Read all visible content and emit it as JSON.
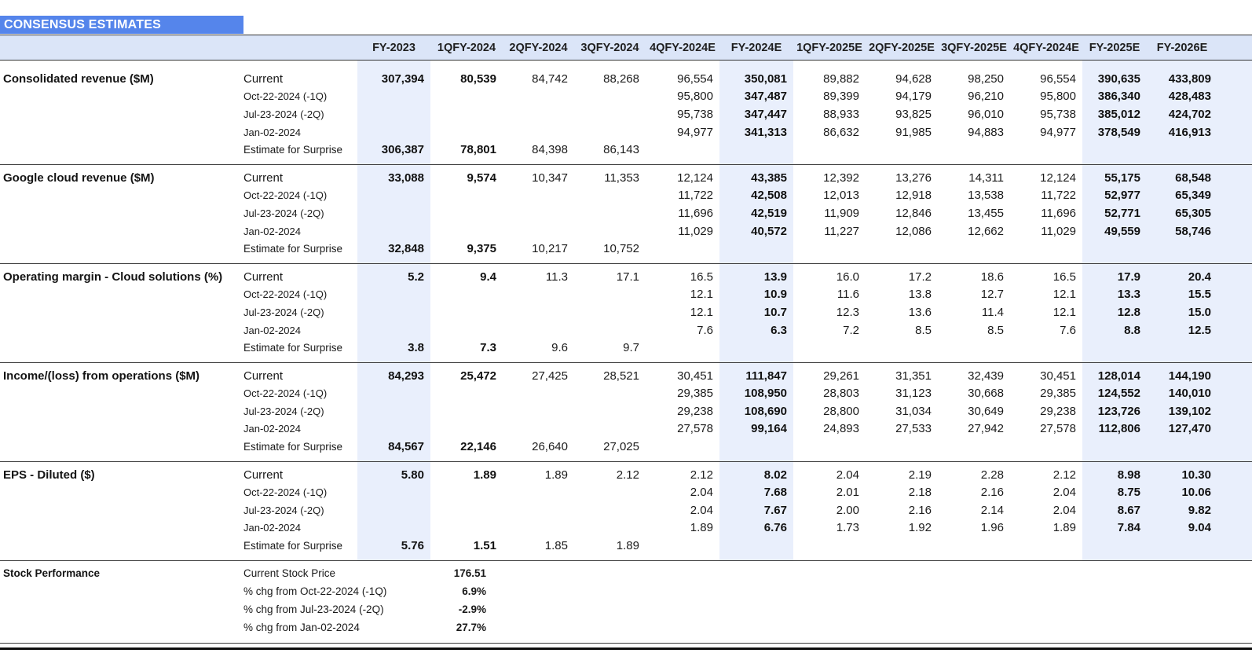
{
  "title": "CONSENSUS ESTIMATES",
  "colors": {
    "title_bg": "#5585EB",
    "header_bg": "#DBE5F8",
    "highlight_bg": "#E9EFFC",
    "title_text": "#FFFFFF",
    "border": "#3C3C3C"
  },
  "columns": [
    {
      "label": "FY-2023",
      "highlight": true,
      "bold": true
    },
    {
      "label": "1QFY-2024",
      "highlight": false,
      "bold": true
    },
    {
      "label": "2QFY-2024",
      "highlight": false,
      "bold": false
    },
    {
      "label": "3QFY-2024",
      "highlight": false,
      "bold": false
    },
    {
      "label": "4QFY-2024E",
      "highlight": false,
      "bold": false
    },
    {
      "label": "FY-2024E",
      "highlight": true,
      "bold": true
    },
    {
      "label": "1QFY-2025E",
      "highlight": false,
      "bold": false
    },
    {
      "label": "2QFY-2025E",
      "highlight": false,
      "bold": false
    },
    {
      "label": "3QFY-2025E",
      "highlight": false,
      "bold": false
    },
    {
      "label": "4QFY-2024E",
      "highlight": false,
      "bold": false
    },
    {
      "label": "FY-2025E",
      "highlight": true,
      "bold": true
    },
    {
      "label": "FY-2026E",
      "highlight": true,
      "bold": true
    }
  ],
  "sections": [
    {
      "metric": "Consolidated revenue ($M)",
      "rows": [
        {
          "label": "Current",
          "values": [
            "307,394",
            "80,539",
            "84,742",
            "88,268",
            "96,554",
            "350,081",
            "89,882",
            "94,628",
            "98,250",
            "96,554",
            "390,635",
            "433,809"
          ]
        },
        {
          "label": "Oct-22-2024 (-1Q)",
          "values": [
            "",
            "",
            "",
            "",
            "95,800",
            "347,487",
            "89,399",
            "94,179",
            "96,210",
            "95,800",
            "386,340",
            "428,483"
          ]
        },
        {
          "label": "Jul-23-2024 (-2Q)",
          "values": [
            "",
            "",
            "",
            "",
            "95,738",
            "347,447",
            "88,933",
            "93,825",
            "96,010",
            "95,738",
            "385,012",
            "424,702"
          ]
        },
        {
          "label": "Jan-02-2024",
          "values": [
            "",
            "",
            "",
            "",
            "94,977",
            "341,313",
            "86,632",
            "91,985",
            "94,883",
            "94,977",
            "378,549",
            "416,913"
          ]
        },
        {
          "label": "Estimate for Surprise",
          "values": [
            "306,387",
            "78,801",
            "84,398",
            "86,143",
            "",
            "",
            "",
            "",
            "",
            "",
            "",
            ""
          ]
        }
      ]
    },
    {
      "metric": "Google cloud revenue ($M)",
      "rows": [
        {
          "label": "Current",
          "values": [
            "33,088",
            "9,574",
            "10,347",
            "11,353",
            "12,124",
            "43,385",
            "12,392",
            "13,276",
            "14,311",
            "12,124",
            "55,175",
            "68,548"
          ]
        },
        {
          "label": "Oct-22-2024 (-1Q)",
          "values": [
            "",
            "",
            "",
            "",
            "11,722",
            "42,508",
            "12,013",
            "12,918",
            "13,538",
            "11,722",
            "52,977",
            "65,349"
          ]
        },
        {
          "label": "Jul-23-2024 (-2Q)",
          "values": [
            "",
            "",
            "",
            "",
            "11,696",
            "42,519",
            "11,909",
            "12,846",
            "13,455",
            "11,696",
            "52,771",
            "65,305"
          ]
        },
        {
          "label": "Jan-02-2024",
          "values": [
            "",
            "",
            "",
            "",
            "11,029",
            "40,572",
            "11,227",
            "12,086",
            "12,662",
            "11,029",
            "49,559",
            "58,746"
          ]
        },
        {
          "label": "Estimate for Surprise",
          "values": [
            "32,848",
            "9,375",
            "10,217",
            "10,752",
            "",
            "",
            "",
            "",
            "",
            "",
            "",
            ""
          ]
        }
      ]
    },
    {
      "metric": "Operating margin - Cloud solutions (%)",
      "rows": [
        {
          "label": "Current",
          "values": [
            "5.2",
            "9.4",
            "11.3",
            "17.1",
            "16.5",
            "13.9",
            "16.0",
            "17.2",
            "18.6",
            "16.5",
            "17.9",
            "20.4"
          ]
        },
        {
          "label": "Oct-22-2024 (-1Q)",
          "values": [
            "",
            "",
            "",
            "",
            "12.1",
            "10.9",
            "11.6",
            "13.8",
            "12.7",
            "12.1",
            "13.3",
            "15.5"
          ]
        },
        {
          "label": "Jul-23-2024 (-2Q)",
          "values": [
            "",
            "",
            "",
            "",
            "12.1",
            "10.7",
            "12.3",
            "13.6",
            "11.4",
            "12.1",
            "12.8",
            "15.0"
          ]
        },
        {
          "label": "Jan-02-2024",
          "values": [
            "",
            "",
            "",
            "",
            "7.6",
            "6.3",
            "7.2",
            "8.5",
            "8.5",
            "7.6",
            "8.8",
            "12.5"
          ]
        },
        {
          "label": "Estimate for Surprise",
          "values": [
            "3.8",
            "7.3",
            "9.6",
            "9.7",
            "",
            "",
            "",
            "",
            "",
            "",
            "",
            ""
          ]
        }
      ]
    },
    {
      "metric": "Income/(loss) from operations ($M)",
      "rows": [
        {
          "label": "Current",
          "values": [
            "84,293",
            "25,472",
            "27,425",
            "28,521",
            "30,451",
            "111,847",
            "29,261",
            "31,351",
            "32,439",
            "30,451",
            "128,014",
            "144,190"
          ]
        },
        {
          "label": "Oct-22-2024 (-1Q)",
          "values": [
            "",
            "",
            "",
            "",
            "29,385",
            "108,950",
            "28,803",
            "31,123",
            "30,668",
            "29,385",
            "124,552",
            "140,010"
          ]
        },
        {
          "label": "Jul-23-2024 (-2Q)",
          "values": [
            "",
            "",
            "",
            "",
            "29,238",
            "108,690",
            "28,800",
            "31,034",
            "30,649",
            "29,238",
            "123,726",
            "139,102"
          ]
        },
        {
          "label": "Jan-02-2024",
          "values": [
            "",
            "",
            "",
            "",
            "27,578",
            "99,164",
            "24,893",
            "27,533",
            "27,942",
            "27,578",
            "112,806",
            "127,470"
          ]
        },
        {
          "label": "Estimate for Surprise",
          "values": [
            "84,567",
            "22,146",
            "26,640",
            "27,025",
            "",
            "",
            "",
            "",
            "",
            "",
            "",
            ""
          ]
        }
      ]
    },
    {
      "metric": "EPS - Diluted ($)",
      "rows": [
        {
          "label": "Current",
          "values": [
            "5.80",
            "1.89",
            "1.89",
            "2.12",
            "2.12",
            "8.02",
            "2.04",
            "2.19",
            "2.28",
            "2.12",
            "8.98",
            "10.30"
          ]
        },
        {
          "label": "Oct-22-2024 (-1Q)",
          "values": [
            "",
            "",
            "",
            "",
            "2.04",
            "7.68",
            "2.01",
            "2.18",
            "2.16",
            "2.04",
            "8.75",
            "10.06"
          ]
        },
        {
          "label": "Jul-23-2024 (-2Q)",
          "values": [
            "",
            "",
            "",
            "",
            "2.04",
            "7.67",
            "2.00",
            "2.16",
            "2.14",
            "2.04",
            "8.67",
            "9.82"
          ]
        },
        {
          "label": "Jan-02-2024",
          "values": [
            "",
            "",
            "",
            "",
            "1.89",
            "6.76",
            "1.73",
            "1.92",
            "1.96",
            "1.89",
            "7.84",
            "9.04"
          ]
        },
        {
          "label": "Estimate for Surprise",
          "values": [
            "5.76",
            "1.51",
            "1.85",
            "1.89",
            "",
            "",
            "",
            "",
            "",
            "",
            "",
            ""
          ]
        }
      ]
    }
  ],
  "stock_performance": {
    "metric": "Stock Performance",
    "rows": [
      {
        "label": "Current Stock Price",
        "value": "176.51"
      },
      {
        "label": "% chg from Oct-22-2024 (-1Q)",
        "value": "6.9%"
      },
      {
        "label": "% chg from Jul-23-2024 (-2Q)",
        "value": "-2.9%"
      },
      {
        "label": "% chg from Jan-02-2024",
        "value": "27.7%"
      }
    ]
  }
}
